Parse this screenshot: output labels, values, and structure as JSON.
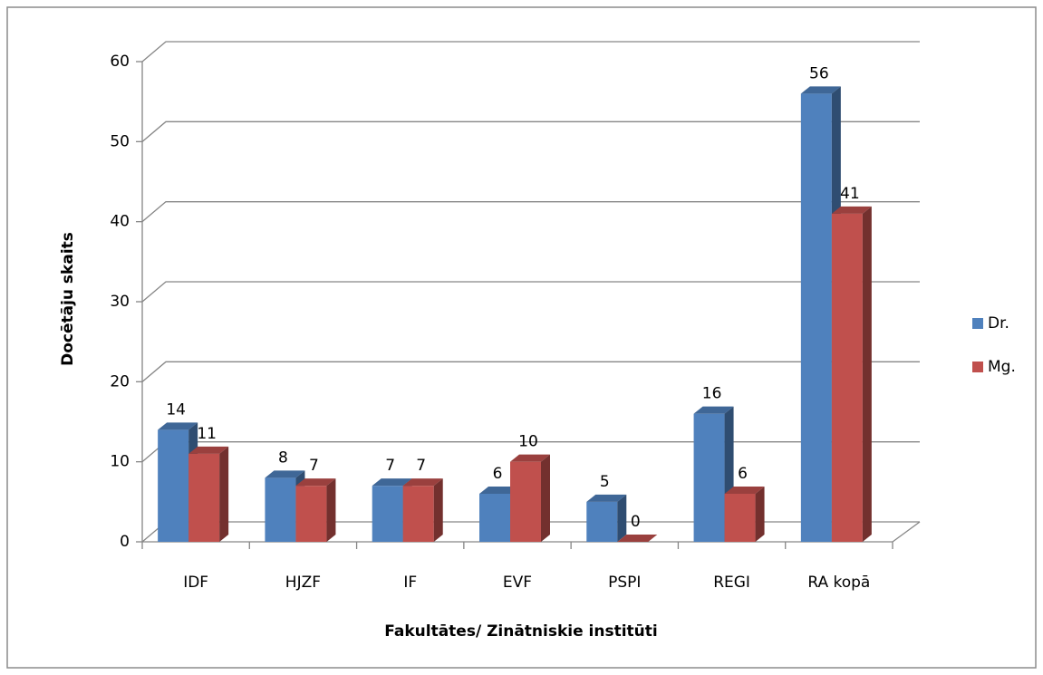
{
  "chart_data": {
    "type": "bar3d",
    "categories": [
      "IDF",
      "HJZF",
      "IF",
      "EVF",
      "PSPI",
      "REGI",
      "RA  kopā"
    ],
    "series": [
      {
        "name": "Dr.",
        "color": "#4f81bd",
        "values": [
          14,
          8,
          7,
          6,
          5,
          16,
          56
        ]
      },
      {
        "name": "Mg.",
        "color": "#c0504d",
        "values": [
          11,
          7,
          7,
          10,
          0,
          6,
          41
        ]
      }
    ],
    "ylim": [
      0,
      60
    ],
    "yticks": [
      0,
      10,
      20,
      30,
      40,
      50,
      60
    ],
    "grid": true,
    "ylabel": "Docētāju skaits",
    "xlabel": "Fakultātes/ Zinātniskie institūti",
    "legend": "right"
  }
}
